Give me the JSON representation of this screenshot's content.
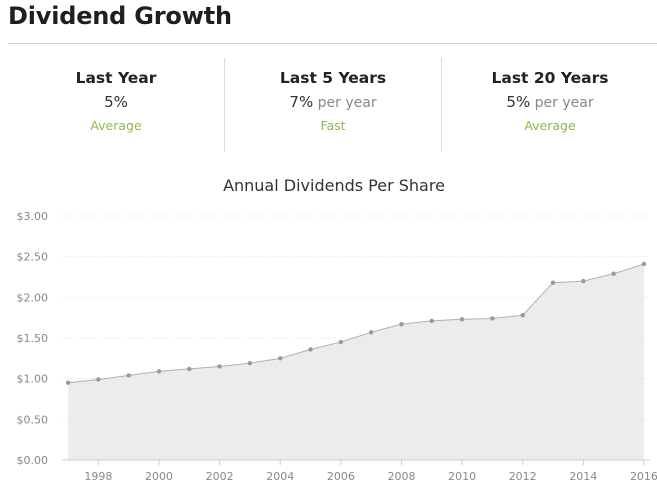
{
  "header": {
    "title": "Dividend Growth"
  },
  "stats": [
    {
      "label": "Last Year",
      "value": "5%",
      "suffix": "",
      "rating": "Average"
    },
    {
      "label": "Last 5 Years",
      "value": "7%",
      "suffix": " per year",
      "rating": "Fast"
    },
    {
      "label": "Last 20 Years",
      "value": "5%",
      "suffix": " per year",
      "rating": "Average"
    }
  ],
  "colors": {
    "accent_green": "#8fb84a",
    "line": "#b0b0b0",
    "area": "#ececec",
    "point": "#999999"
  },
  "chart_data": {
    "type": "area",
    "title": "Annual Dividends Per Share",
    "xlabel": "",
    "ylabel": "",
    "x": [
      1997,
      1998,
      1999,
      2000,
      2001,
      2002,
      2003,
      2004,
      2005,
      2006,
      2007,
      2008,
      2009,
      2010,
      2011,
      2012,
      2013,
      2014,
      2015,
      2016
    ],
    "series": [
      {
        "values": [
          0.95,
          0.99,
          1.04,
          1.09,
          1.12,
          1.15,
          1.19,
          1.25,
          1.36,
          1.45,
          1.57,
          1.67,
          1.71,
          1.73,
          1.74,
          1.78,
          2.18,
          2.2,
          2.29,
          2.41
        ]
      }
    ],
    "xlim": [
      1996.8,
      2016.2
    ],
    "ylim": [
      0,
      3
    ],
    "y_ticks": [
      0,
      0.5,
      1.0,
      1.5,
      2.0,
      2.5,
      3.0
    ],
    "y_tick_labels": [
      "$0.00",
      "$0.50",
      "$1.00",
      "$1.50",
      "$2.00",
      "$2.50",
      "$3.00"
    ],
    "x_ticks": [
      1998,
      2000,
      2002,
      2004,
      2006,
      2008,
      2010,
      2012,
      2014,
      2016
    ],
    "x_tick_labels": [
      "1998",
      "2000",
      "2002",
      "2004",
      "2006",
      "2008",
      "2010",
      "2012",
      "2014",
      "2016"
    ],
    "grid": true
  }
}
